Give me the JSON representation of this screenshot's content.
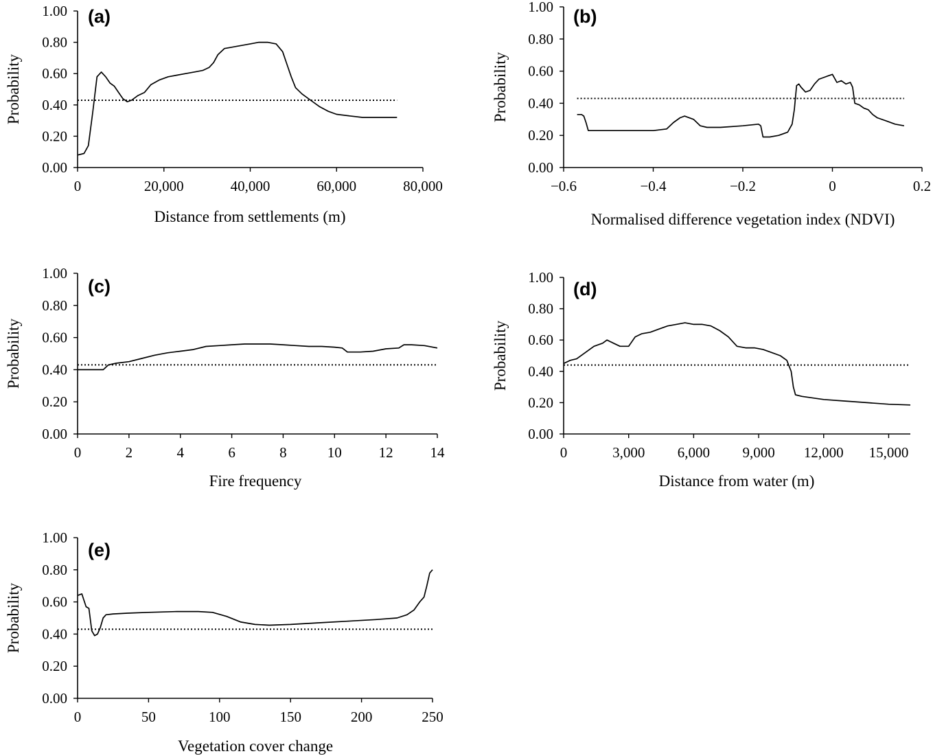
{
  "chart_data": [
    {
      "type": "line",
      "panel_label": "(a)",
      "xlabel": "Distance from settlements (m)",
      "ylabel": "Probability",
      "xlim": [
        0,
        80000
      ],
      "ylim": [
        0,
        1
      ],
      "xticks": [
        0,
        20000,
        40000,
        60000,
        80000
      ],
      "xtick_labels": [
        "0",
        "20,000",
        "40,000",
        "60,000",
        "80,000"
      ],
      "yticks": [
        0,
        0.2,
        0.4,
        0.6,
        0.8,
        1.0
      ],
      "ytick_labels": [
        "0.00",
        "0.20",
        "0.40",
        "0.60",
        "0.80",
        "1.00"
      ],
      "reference_line": {
        "y": 0.43,
        "x_range": [
          0,
          74000
        ]
      },
      "series": [
        {
          "x": [
            0,
            1500,
            2500,
            3500,
            4500,
            5500,
            6500,
            7500,
            8500,
            9500,
            10500,
            11500,
            12500,
            14000,
            15500,
            17000,
            19000,
            21000,
            23000,
            25000,
            27000,
            29000,
            30500,
            31500,
            32500,
            34000,
            36000,
            38000,
            40000,
            42000,
            44000,
            46000,
            47500,
            48500,
            49500,
            50500,
            52000,
            54000,
            56000,
            58000,
            60000,
            63000,
            66000,
            70000,
            74000
          ],
          "y": [
            0.08,
            0.09,
            0.14,
            0.35,
            0.58,
            0.61,
            0.58,
            0.54,
            0.52,
            0.48,
            0.44,
            0.42,
            0.43,
            0.46,
            0.48,
            0.53,
            0.56,
            0.58,
            0.59,
            0.6,
            0.61,
            0.62,
            0.64,
            0.67,
            0.72,
            0.76,
            0.77,
            0.78,
            0.79,
            0.8,
            0.8,
            0.79,
            0.74,
            0.66,
            0.58,
            0.51,
            0.47,
            0.43,
            0.39,
            0.36,
            0.34,
            0.33,
            0.32,
            0.32,
            0.32
          ]
        }
      ]
    },
    {
      "type": "line",
      "panel_label": "(b)",
      "xlabel": "Normalised difference vegetation index (NDVI)",
      "ylabel": "Probability",
      "xlim": [
        -0.6,
        0.2
      ],
      "ylim": [
        0,
        1
      ],
      "xticks": [
        -0.6,
        -0.4,
        -0.2,
        0,
        0.2
      ],
      "xtick_labels": [
        "−0.6",
        "−0.4",
        "−0.2",
        "0",
        "0.2"
      ],
      "yticks": [
        0,
        0.2,
        0.4,
        0.6,
        0.8,
        1.0
      ],
      "ytick_labels": [
        "0.00",
        "0.20",
        "0.40",
        "0.60",
        "0.80",
        "1.00"
      ],
      "reference_line": {
        "y": 0.43,
        "x_range": [
          -0.57,
          0.16
        ]
      },
      "series": [
        {
          "x": [
            -0.57,
            -0.56,
            -0.555,
            -0.55,
            -0.545,
            -0.5,
            -0.45,
            -0.4,
            -0.37,
            -0.355,
            -0.34,
            -0.33,
            -0.31,
            -0.295,
            -0.28,
            -0.25,
            -0.2,
            -0.165,
            -0.16,
            -0.155,
            -0.14,
            -0.12,
            -0.1,
            -0.09,
            -0.085,
            -0.08,
            -0.075,
            -0.07,
            -0.06,
            -0.05,
            -0.04,
            -0.03,
            -0.02,
            -0.01,
            0,
            0.01,
            0.02,
            0.03,
            0.04,
            0.045,
            0.05,
            0.06,
            0.07,
            0.08,
            0.09,
            0.1,
            0.12,
            0.14,
            0.16
          ],
          "y": [
            0.33,
            0.33,
            0.32,
            0.28,
            0.23,
            0.23,
            0.23,
            0.23,
            0.24,
            0.28,
            0.31,
            0.32,
            0.3,
            0.26,
            0.25,
            0.25,
            0.26,
            0.27,
            0.26,
            0.19,
            0.19,
            0.2,
            0.22,
            0.27,
            0.36,
            0.51,
            0.52,
            0.5,
            0.47,
            0.48,
            0.52,
            0.55,
            0.56,
            0.57,
            0.58,
            0.53,
            0.54,
            0.52,
            0.53,
            0.5,
            0.4,
            0.39,
            0.37,
            0.36,
            0.33,
            0.31,
            0.29,
            0.27,
            0.26
          ]
        }
      ]
    },
    {
      "type": "line",
      "panel_label": "(c)",
      "xlabel": "Fire frequency",
      "ylabel": "Probability",
      "xlim": [
        0,
        14
      ],
      "ylim": [
        0,
        1
      ],
      "xticks": [
        0,
        2,
        4,
        6,
        8,
        10,
        12,
        14
      ],
      "xtick_labels": [
        "0",
        "2",
        "4",
        "6",
        "8",
        "10",
        "12",
        "14"
      ],
      "yticks": [
        0,
        0.2,
        0.4,
        0.6,
        0.8,
        1.0
      ],
      "ytick_labels": [
        "0.00",
        "0.20",
        "0.40",
        "0.60",
        "0.80",
        "1.00"
      ],
      "reference_line": {
        "y": 0.43,
        "x_range": [
          0,
          14
        ]
      },
      "series": [
        {
          "x": [
            0,
            0.5,
            1,
            1.2,
            1.5,
            2,
            2.5,
            3,
            3.5,
            4,
            4.5,
            5,
            5.5,
            6,
            6.5,
            7,
            7.5,
            8,
            8.5,
            9,
            9.5,
            10,
            10.3,
            10.5,
            10.7,
            11,
            11.5,
            12,
            12.5,
            12.7,
            13,
            13.5,
            14
          ],
          "y": [
            0.4,
            0.4,
            0.4,
            0.43,
            0.44,
            0.45,
            0.47,
            0.49,
            0.505,
            0.515,
            0.525,
            0.545,
            0.55,
            0.555,
            0.56,
            0.56,
            0.56,
            0.555,
            0.55,
            0.545,
            0.545,
            0.54,
            0.535,
            0.51,
            0.51,
            0.51,
            0.515,
            0.53,
            0.535,
            0.555,
            0.555,
            0.55,
            0.535
          ]
        }
      ]
    },
    {
      "type": "line",
      "panel_label": "(d)",
      "xlabel": "Distance from water (m)",
      "ylabel": "Probability",
      "xlim": [
        0,
        16000
      ],
      "ylim": [
        0,
        1
      ],
      "xticks": [
        0,
        3000,
        6000,
        9000,
        12000,
        15000
      ],
      "xtick_labels": [
        "0",
        "3,000",
        "6,000",
        "9,000",
        "12,000",
        "15,000"
      ],
      "yticks": [
        0,
        0.2,
        0.4,
        0.6,
        0.8,
        1.0
      ],
      "ytick_labels": [
        "0.00",
        "0.20",
        "0.40",
        "0.60",
        "0.80",
        "1.00"
      ],
      "reference_line": {
        "y": 0.44,
        "x_range": [
          0,
          16000
        ]
      },
      "series": [
        {
          "x": [
            0,
            300,
            600,
            1000,
            1400,
            1800,
            2000,
            2300,
            2600,
            3000,
            3300,
            3600,
            4000,
            4400,
            4800,
            5200,
            5600,
            6000,
            6400,
            6800,
            7200,
            7600,
            8000,
            8400,
            8800,
            9200,
            9600,
            10000,
            10300,
            10500,
            10600,
            10700,
            11000,
            12000,
            13000,
            14000,
            15000,
            16000
          ],
          "y": [
            0.45,
            0.47,
            0.48,
            0.52,
            0.56,
            0.58,
            0.6,
            0.58,
            0.56,
            0.56,
            0.62,
            0.64,
            0.65,
            0.67,
            0.69,
            0.7,
            0.71,
            0.7,
            0.7,
            0.69,
            0.66,
            0.62,
            0.56,
            0.55,
            0.55,
            0.54,
            0.52,
            0.5,
            0.47,
            0.4,
            0.3,
            0.25,
            0.24,
            0.22,
            0.21,
            0.2,
            0.19,
            0.185
          ]
        }
      ]
    },
    {
      "type": "line",
      "panel_label": "(e)",
      "xlabel": "Vegetation cover change",
      "ylabel": "Probability",
      "xlim": [
        0,
        250
      ],
      "ylim": [
        0,
        1
      ],
      "xticks": [
        0,
        50,
        100,
        150,
        200,
        250
      ],
      "xtick_labels": [
        "0",
        "50",
        "100",
        "150",
        "200",
        "250"
      ],
      "yticks": [
        0,
        0.2,
        0.4,
        0.6,
        0.8,
        1.0
      ],
      "ytick_labels": [
        "0.00",
        "0.20",
        "0.40",
        "0.60",
        "0.80",
        "1.00"
      ],
      "reference_line": {
        "y": 0.43,
        "x_range": [
          0,
          250
        ]
      },
      "series": [
        {
          "x": [
            0,
            3,
            6,
            8,
            10,
            12,
            14,
            16,
            18,
            20,
            25,
            35,
            50,
            70,
            85,
            95,
            105,
            115,
            125,
            135,
            150,
            170,
            190,
            210,
            225,
            232,
            237,
            241,
            244,
            246,
            248,
            250
          ],
          "y": [
            0.64,
            0.65,
            0.57,
            0.56,
            0.42,
            0.39,
            0.4,
            0.44,
            0.5,
            0.52,
            0.525,
            0.53,
            0.535,
            0.54,
            0.54,
            0.535,
            0.51,
            0.475,
            0.46,
            0.455,
            0.46,
            0.47,
            0.48,
            0.49,
            0.5,
            0.52,
            0.55,
            0.6,
            0.63,
            0.7,
            0.78,
            0.8
          ]
        }
      ]
    }
  ]
}
